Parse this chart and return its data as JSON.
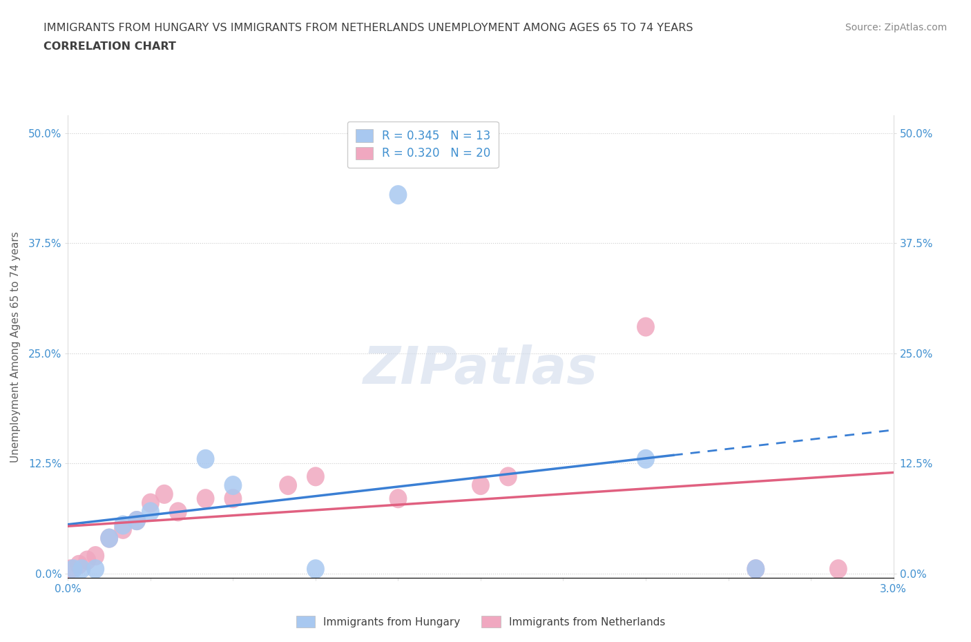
{
  "title_line1": "IMMIGRANTS FROM HUNGARY VS IMMIGRANTS FROM NETHERLANDS UNEMPLOYMENT AMONG AGES 65 TO 74 YEARS",
  "title_line2": "CORRELATION CHART",
  "source_text": "Source: ZipAtlas.com",
  "ylabel": "Unemployment Among Ages 65 to 74 years",
  "xlim": [
    0.0,
    0.03
  ],
  "ylim": [
    -0.005,
    0.52
  ],
  "yticks": [
    0.0,
    0.125,
    0.25,
    0.375,
    0.5
  ],
  "ytick_labels": [
    "0.0%",
    "12.5%",
    "25.0%",
    "37.5%",
    "50.0%"
  ],
  "xticks": [
    0.0,
    0.003,
    0.006,
    0.009,
    0.012,
    0.015,
    0.018,
    0.021,
    0.024,
    0.027,
    0.03
  ],
  "xtick_labels": [
    "0.0%",
    "",
    "",
    "",
    "",
    "",
    "",
    "",
    "",
    "",
    "3.0%"
  ],
  "hungary_x": [
    0.0002,
    0.0005,
    0.001,
    0.0015,
    0.002,
    0.0025,
    0.003,
    0.005,
    0.006,
    0.009,
    0.012,
    0.021,
    0.025
  ],
  "hungary_y": [
    0.005,
    0.005,
    0.005,
    0.04,
    0.055,
    0.06,
    0.07,
    0.13,
    0.1,
    0.005,
    0.43,
    0.13,
    0.005
  ],
  "netherlands_x": [
    0.0001,
    0.0004,
    0.0007,
    0.001,
    0.0015,
    0.002,
    0.0025,
    0.003,
    0.0035,
    0.004,
    0.005,
    0.006,
    0.008,
    0.009,
    0.012,
    0.015,
    0.016,
    0.021,
    0.025,
    0.028
  ],
  "netherlands_y": [
    0.005,
    0.01,
    0.015,
    0.02,
    0.04,
    0.05,
    0.06,
    0.08,
    0.09,
    0.07,
    0.085,
    0.085,
    0.1,
    0.11,
    0.085,
    0.1,
    0.11,
    0.28,
    0.005,
    0.005
  ],
  "hungary_R": 0.345,
  "hungary_N": 13,
  "netherlands_R": 0.32,
  "netherlands_N": 20,
  "hungary_color": "#a8c8f0",
  "netherlands_color": "#f0a8c0",
  "hungary_line_color": "#3a7fd4",
  "netherlands_line_color": "#e06080",
  "watermark": "ZIPatlas",
  "title_color": "#404040",
  "axis_label_color": "#606060",
  "tick_color": "#4090d0",
  "grid_color": "#cccccc",
  "background_color": "#ffffff"
}
